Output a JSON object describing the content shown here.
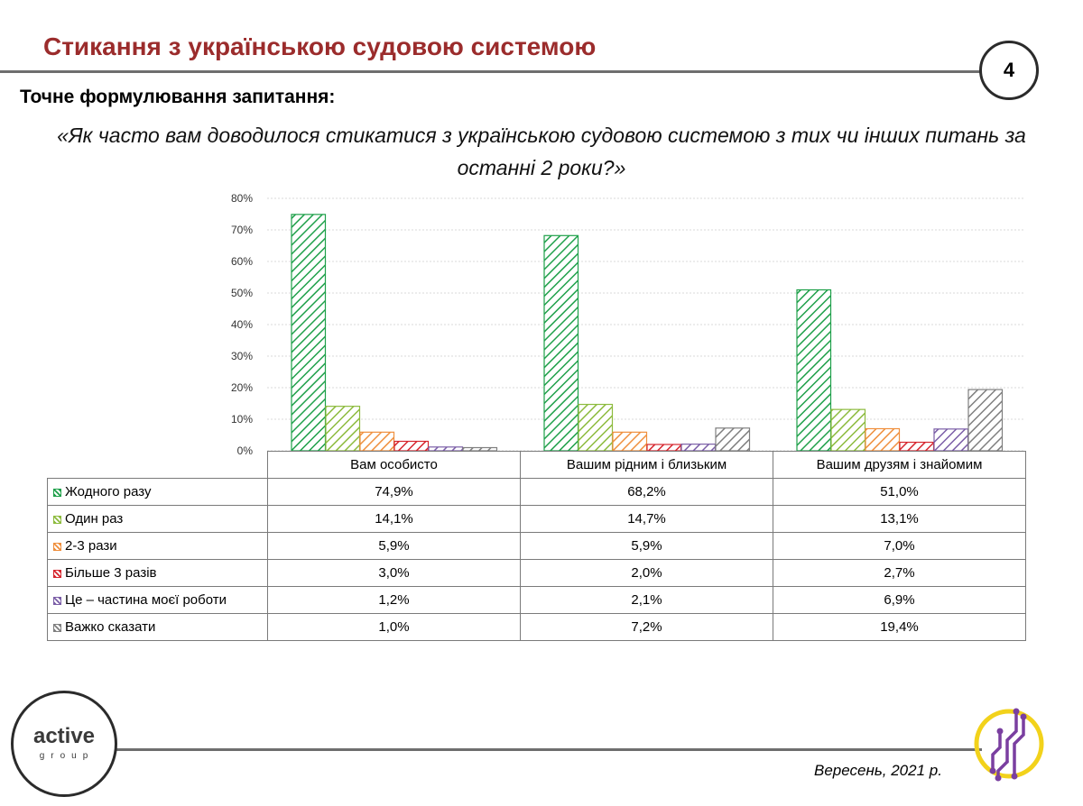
{
  "header": {
    "title": "Стикання з українською судовою системою",
    "page_number": "4"
  },
  "question": {
    "label": "Точне формулювання запитання:",
    "text": "«Як часто вам доводилося стикатися з українською судовою системою з тих чи інших питань за останні 2 роки?»"
  },
  "footer": {
    "logo_word": "active",
    "logo_sub": "group",
    "date": "Вересень, 2021 р.",
    "mark_icon": "circuit-logo-icon"
  },
  "colors": {
    "title": "#9b2c2c",
    "s1": "#1fa04a",
    "s2": "#8dbb3e",
    "s3": "#ef8f3d",
    "s4": "#d6262e",
    "s5": "#7b5ea7",
    "s6": "#7f7f7f",
    "accent": "#f2d21b",
    "purple": "#7a3fa0"
  },
  "chart_data": {
    "type": "bar",
    "categories": [
      "Вам особисто",
      "Вашим рідним і близьким",
      "Вашим друзям і знайомим"
    ],
    "ylim": [
      0,
      80
    ],
    "yticks": [
      "0%",
      "10%",
      "20%",
      "30%",
      "40%",
      "50%",
      "60%",
      "70%",
      "80%"
    ],
    "grid": true,
    "pattern": "diagonal-hatch",
    "series": [
      {
        "name": "Жодного разу",
        "values": [
          74.9,
          68.2,
          51.0
        ],
        "labels": [
          "74,9%",
          "68,2%",
          "51,0%"
        ],
        "color": "#1fa04a"
      },
      {
        "name": "Один раз",
        "values": [
          14.1,
          14.7,
          13.1
        ],
        "labels": [
          "14,1%",
          "14,7%",
          "13,1%"
        ],
        "color": "#8dbb3e"
      },
      {
        "name": "2-3 рази",
        "values": [
          5.9,
          5.9,
          7.0
        ],
        "labels": [
          "5,9%",
          "5,9%",
          "7,0%"
        ],
        "color": "#ef8f3d"
      },
      {
        "name": "Більше 3 разів",
        "values": [
          3.0,
          2.0,
          2.7
        ],
        "labels": [
          "3,0%",
          "2,0%",
          "2,7%"
        ],
        "color": "#d6262e"
      },
      {
        "name": "Це – частина моєї роботи",
        "values": [
          1.2,
          2.1,
          6.9
        ],
        "labels": [
          "1,2%",
          "2,1%",
          "6,9%"
        ],
        "color": "#7b5ea7"
      },
      {
        "name": "Важко сказати",
        "values": [
          1.0,
          7.2,
          19.4
        ],
        "labels": [
          "1,0%",
          "7,2%",
          "19,4%"
        ],
        "color": "#7f7f7f"
      }
    ]
  }
}
